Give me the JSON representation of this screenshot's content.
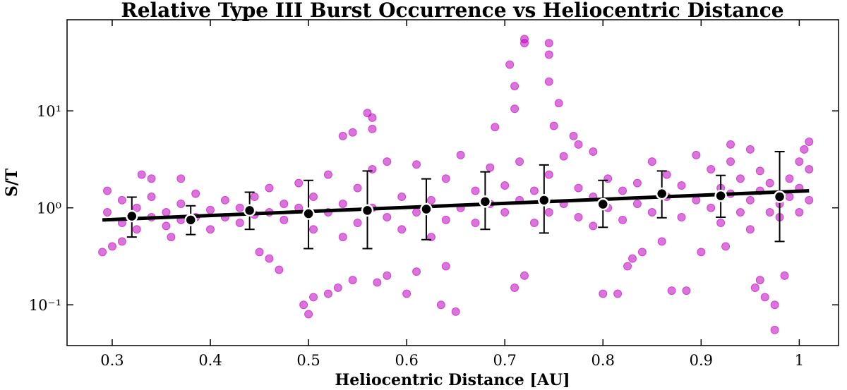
{
  "chart_data": {
    "type": "scatter",
    "title": "Relative Type III Burst Occurrence vs Heliocentric Distance",
    "x_label": "Heliocentric Distance [AU]",
    "y_label": "S/T",
    "xlim": [
      0.254,
      1.04
    ],
    "ylim": [
      0.038,
      87
    ],
    "log_y": true,
    "xticks": [
      0.3,
      0.4,
      0.5,
      0.6,
      0.7,
      0.8,
      0.9,
      1.0
    ],
    "yticks": [
      {
        "value": 0.1,
        "label": "10⁻¹"
      },
      {
        "value": 1,
        "label": "10⁰"
      },
      {
        "value": 10,
        "label": "10¹"
      }
    ],
    "series": [
      {
        "color": "#c000c0",
        "x": [
          0.72,
          0.72,
          0.745,
          0.745,
          0.705,
          0.71,
          0.71,
          0.745,
          0.755,
          0.75,
          0.56,
          0.565,
          0.565,
          0.545,
          0.535,
          0.69,
          0.77,
          0.775,
          0.79,
          0.5,
          0.495,
          0.505,
          0.975,
          0.975,
          0.965,
          0.96,
          0.955,
          0.985,
          0.65,
          0.635,
          0.6,
          0.57,
          0.545,
          0.58,
          0.47,
          0.46,
          0.45,
          0.8,
          0.815,
          0.87,
          0.885,
          0.825,
          0.83,
          0.84,
          0.86,
          0.9,
          0.925,
          0.71,
          0.72,
          0.64,
          0.61,
          0.53,
          0.52,
          1.01,
          1.005,
          1.0,
          0.93,
          0.95,
          0.29,
          0.3,
          0.31,
          0.33,
          0.34,
          0.37,
          0.36,
          0.295,
          0.295,
          0.31,
          0.31,
          0.325,
          0.325,
          0.34,
          0.34,
          0.355,
          0.355,
          0.37,
          0.37,
          0.385,
          0.385,
          0.4,
          0.4,
          0.415,
          0.415,
          0.43,
          0.43,
          0.445,
          0.445,
          0.46,
          0.46,
          0.475,
          0.475,
          0.49,
          0.49,
          0.505,
          0.505,
          0.52,
          0.52,
          0.535,
          0.535,
          0.55,
          0.55,
          0.565,
          0.565,
          0.58,
          0.58,
          0.595,
          0.595,
          0.61,
          0.61,
          0.625,
          0.625,
          0.64,
          0.64,
          0.655,
          0.655,
          0.67,
          0.67,
          0.685,
          0.685,
          0.7,
          0.7,
          0.715,
          0.715,
          0.73,
          0.73,
          0.745,
          0.745,
          0.76,
          0.76,
          0.775,
          0.775,
          0.79,
          0.79,
          0.805,
          0.805,
          0.82,
          0.82,
          0.835,
          0.835,
          0.85,
          0.85,
          0.865,
          0.865,
          0.88,
          0.88,
          0.895,
          0.895,
          0.91,
          0.91,
          0.92,
          0.92,
          0.93,
          0.93,
          0.94,
          0.94,
          0.95,
          0.95,
          0.96,
          0.96,
          0.97,
          0.97,
          0.98,
          0.98,
          0.99,
          0.99,
          1.0,
          1.0,
          1.01,
          1.01
        ],
        "values": [
          55,
          50,
          50,
          38,
          30,
          18,
          10.5,
          20,
          12,
          7,
          9.5,
          8.5,
          6.5,
          6,
          5.5,
          6.8,
          5.5,
          4.5,
          3.8,
          0.08,
          0.1,
          0.12,
          0.055,
          0.1,
          0.12,
          0.18,
          0.15,
          0.2,
          0.085,
          0.1,
          0.13,
          0.17,
          0.18,
          0.2,
          0.23,
          0.3,
          0.35,
          0.13,
          0.13,
          0.14,
          0.14,
          0.25,
          0.3,
          0.35,
          0.45,
          0.35,
          0.4,
          0.15,
          0.2,
          0.25,
          0.22,
          0.15,
          0.13,
          4.8,
          4,
          3,
          4.5,
          4,
          0.35,
          0.4,
          0.45,
          2.2,
          2,
          2,
          0.5,
          0.9,
          1.5,
          0.7,
          1.2,
          1.0,
          0.6,
          0.8,
          1.3,
          0.9,
          0.65,
          1.1,
          0.75,
          0.8,
          1.4,
          0.95,
          0.6,
          1.2,
          0.8,
          0.7,
          1.0,
          1.3,
          0.85,
          0.9,
          1.6,
          0.75,
          1.1,
          1.0,
          1.8,
          0.6,
          1.3,
          2.2,
          0.9,
          1.1,
          0.5,
          1.6,
          0.7,
          2.5,
          1.0,
          0.8,
          3.0,
          1.3,
          0.6,
          2.8,
          0.9,
          1.2,
          0.5,
          2.0,
          0.75,
          1.0,
          3.5,
          1.5,
          0.7,
          2.6,
          1.1,
          0.9,
          1.7,
          3.0,
          1.2,
          0.7,
          1.5,
          2.2,
          0.9,
          1.1,
          3.4,
          0.8,
          1.6,
          1.3,
          0.65,
          2.0,
          1.0,
          0.75,
          1.5,
          1.8,
          1.1,
          3.0,
          0.9,
          1.3,
          2.2,
          0.8,
          1.7,
          3.5,
          1.2,
          1.0,
          2.5,
          0.7,
          1.6,
          1.4,
          3.0,
          0.9,
          2.0,
          1.2,
          0.6,
          2.4,
          1.5,
          0.9,
          1.8,
          1.1,
          0.8,
          2.0,
          1.3,
          1.6,
          0.9,
          1.2,
          2.5
        ]
      }
    ],
    "means": {
      "x": [
        0.32,
        0.38,
        0.44,
        0.5,
        0.56,
        0.62,
        0.68,
        0.74,
        0.8,
        0.86,
        0.92,
        0.98
      ],
      "values": [
        0.82,
        0.75,
        0.94,
        0.87,
        0.94,
        0.97,
        1.16,
        1.2,
        1.09,
        1.4,
        1.33,
        1.3
      ],
      "err_low": [
        0.5,
        0.53,
        0.6,
        0.38,
        0.38,
        0.47,
        0.6,
        0.55,
        0.63,
        0.79,
        0.8,
        0.45
      ],
      "err_high": [
        1.29,
        1.05,
        1.45,
        1.92,
        2.4,
        1.99,
        2.35,
        2.77,
        1.92,
        2.4,
        2.16,
        3.8
      ]
    },
    "fit": {
      "x": [
        0.29,
        1.01
      ],
      "values": [
        0.75,
        1.5
      ]
    }
  }
}
